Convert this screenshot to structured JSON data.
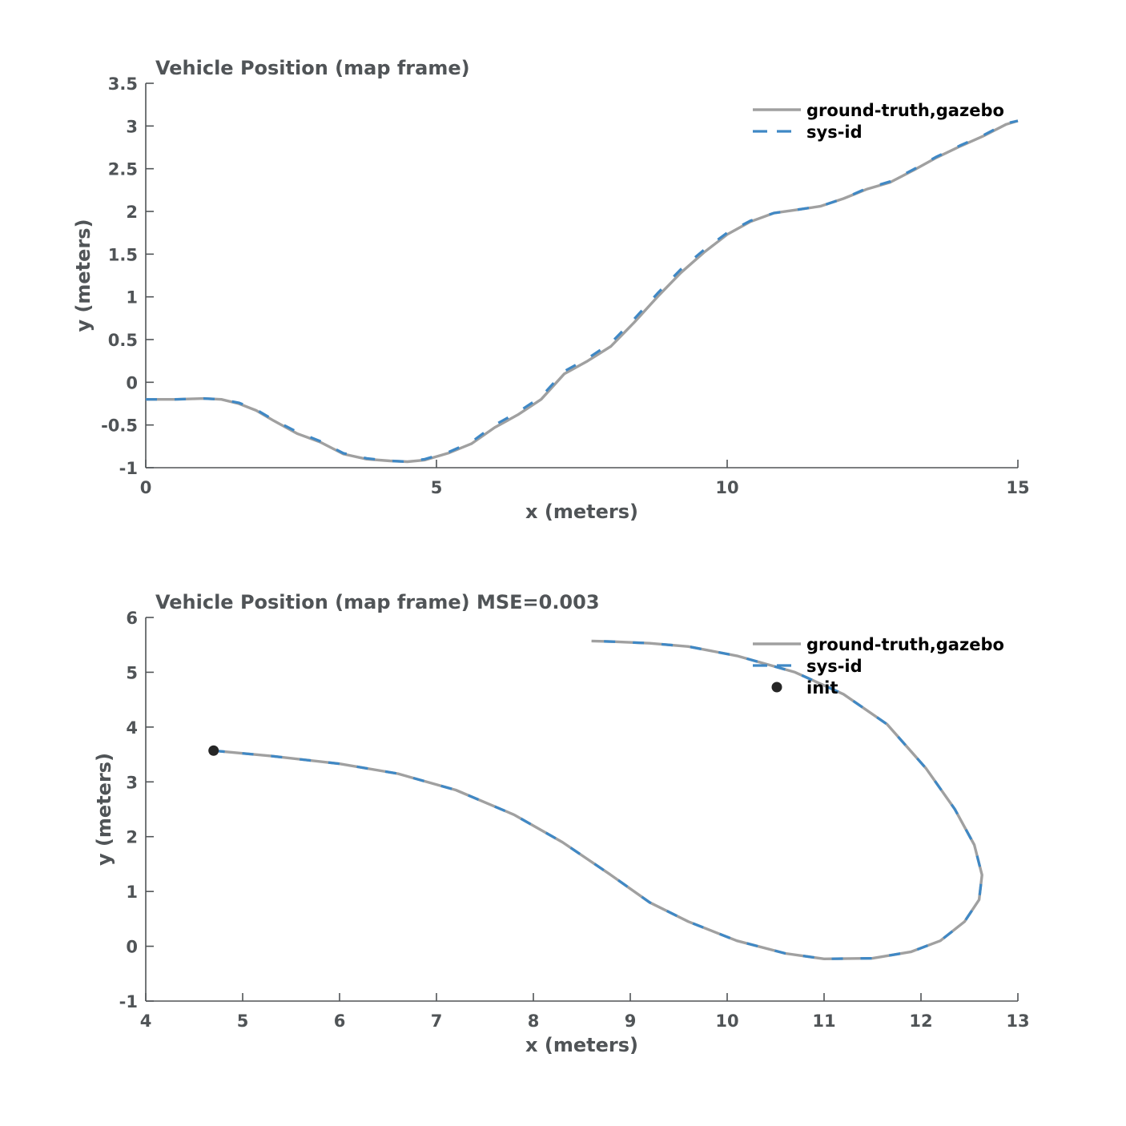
{
  "colors": {
    "ground_truth": "#a0a0a0",
    "sys_id": "#3f88c5",
    "init": "#262626",
    "axis": "#505457"
  },
  "chart_data": [
    {
      "type": "line",
      "title": "Vehicle Position (map frame)",
      "xlabel": "x (meters)",
      "ylabel": "y (meters)",
      "xlim": [
        0,
        15
      ],
      "ylim": [
        -1,
        3.5
      ],
      "xticks": [
        0,
        5,
        10,
        15
      ],
      "yticks": [
        -1,
        -0.5,
        0,
        0.5,
        1,
        1.5,
        2,
        2.5,
        3,
        3.5
      ],
      "xtick_labels": [
        "0",
        "5",
        "10",
        "15"
      ],
      "ytick_labels": [
        "-1",
        "-0.5",
        "0",
        "0.5",
        "1",
        "1.5",
        "2",
        "2.5",
        "3",
        "3.5"
      ],
      "grid": false,
      "legend_position": "top-right",
      "series": [
        {
          "name": "ground-truth,gazebo",
          "style": "solid",
          "x": [
            0,
            0.5,
            1.0,
            1.3,
            1.6,
            1.9,
            2.2,
            2.6,
            3.0,
            3.4,
            3.8,
            4.2,
            4.5,
            4.8,
            5.2,
            5.6,
            6.0,
            6.4,
            6.8,
            7.2,
            7.6,
            8.0,
            8.4,
            8.8,
            9.2,
            9.6,
            10.0,
            10.4,
            10.8,
            11.2,
            11.6,
            12.0,
            12.4,
            12.8,
            13.2,
            13.6,
            14.0,
            14.4,
            14.8,
            15.0
          ],
          "y": [
            -0.2,
            -0.2,
            -0.19,
            -0.2,
            -0.25,
            -0.33,
            -0.45,
            -0.6,
            -0.7,
            -0.84,
            -0.9,
            -0.92,
            -0.93,
            -0.91,
            -0.83,
            -0.72,
            -0.53,
            -0.38,
            -0.2,
            0.1,
            0.25,
            0.42,
            0.7,
            1.0,
            1.28,
            1.52,
            1.73,
            1.88,
            1.98,
            2.02,
            2.06,
            2.15,
            2.26,
            2.34,
            2.48,
            2.63,
            2.76,
            2.88,
            3.02,
            3.06
          ]
        },
        {
          "name": "sys-id",
          "style": "dashed",
          "x": [
            0,
            0.5,
            1.0,
            1.3,
            1.6,
            1.9,
            2.2,
            2.6,
            3.0,
            3.4,
            3.8,
            4.2,
            4.5,
            4.8,
            5.2,
            5.6,
            6.0,
            6.4,
            6.8,
            7.2,
            7.6,
            8.0,
            8.4,
            8.8,
            9.2,
            9.6,
            10.0,
            10.4,
            10.8,
            11.2,
            11.6,
            12.0,
            12.4,
            12.8,
            13.2,
            13.6,
            14.0,
            14.4,
            14.8,
            15.0
          ],
          "y": [
            -0.2,
            -0.2,
            -0.19,
            -0.2,
            -0.24,
            -0.32,
            -0.44,
            -0.58,
            -0.69,
            -0.83,
            -0.89,
            -0.92,
            -0.93,
            -0.9,
            -0.82,
            -0.7,
            -0.5,
            -0.35,
            -0.17,
            0.13,
            0.28,
            0.46,
            0.74,
            1.04,
            1.32,
            1.55,
            1.75,
            1.89,
            1.98,
            2.02,
            2.06,
            2.15,
            2.27,
            2.35,
            2.49,
            2.64,
            2.77,
            2.89,
            3.03,
            3.06
          ]
        }
      ]
    },
    {
      "type": "line",
      "title": "Vehicle Position (map frame) MSE=0.003",
      "xlabel": "x (meters)",
      "ylabel": "y (meters)",
      "xlim": [
        4,
        13
      ],
      "ylim": [
        -1,
        6
      ],
      "xticks": [
        4,
        5,
        6,
        7,
        8,
        9,
        10,
        11,
        12,
        13
      ],
      "yticks": [
        -1,
        0,
        1,
        2,
        3,
        4,
        5,
        6
      ],
      "xtick_labels": [
        "4",
        "5",
        "6",
        "7",
        "8",
        "9",
        "10",
        "11",
        "12",
        "13"
      ],
      "ytick_labels": [
        "-1",
        "0",
        "1",
        "2",
        "3",
        "4",
        "5",
        "6"
      ],
      "grid": false,
      "legend_position": "top-right",
      "series": [
        {
          "name": "ground-truth,gazebo",
          "style": "solid",
          "x": [
            4.7,
            5.3,
            6.0,
            6.6,
            7.2,
            7.8,
            8.3,
            8.8,
            9.2,
            9.6,
            10.1,
            10.6,
            11.0,
            11.5,
            11.9,
            12.2,
            12.45,
            12.6,
            12.63,
            12.55,
            12.35,
            12.05,
            11.65,
            11.2,
            10.7,
            10.1,
            9.6,
            9.2,
            8.8,
            8.6
          ],
          "y": [
            3.57,
            3.47,
            3.33,
            3.15,
            2.85,
            2.4,
            1.9,
            1.3,
            0.8,
            0.45,
            0.1,
            -0.13,
            -0.23,
            -0.22,
            -0.1,
            0.1,
            0.45,
            0.85,
            1.3,
            1.85,
            2.5,
            3.25,
            4.05,
            4.6,
            5.0,
            5.3,
            5.47,
            5.53,
            5.56,
            5.57
          ]
        },
        {
          "name": "sys-id",
          "style": "dashed",
          "x": [
            4.7,
            5.3,
            6.0,
            6.6,
            7.2,
            7.8,
            8.3,
            8.8,
            9.2,
            9.6,
            10.1,
            10.6,
            11.0,
            11.5,
            11.9,
            12.2,
            12.45,
            12.6,
            12.63,
            12.55,
            12.35,
            12.05,
            11.65,
            11.2,
            10.7,
            10.1,
            9.6,
            9.2,
            8.8,
            8.6
          ],
          "y": [
            3.57,
            3.47,
            3.33,
            3.15,
            2.85,
            2.4,
            1.9,
            1.3,
            0.8,
            0.45,
            0.1,
            -0.13,
            -0.23,
            -0.22,
            -0.1,
            0.1,
            0.45,
            0.85,
            1.3,
            1.85,
            2.5,
            3.25,
            4.05,
            4.6,
            5.0,
            5.3,
            5.47,
            5.53,
            5.56,
            5.57
          ]
        },
        {
          "name": "init",
          "style": "marker",
          "x": [
            4.7
          ],
          "y": [
            3.57
          ]
        }
      ]
    }
  ]
}
